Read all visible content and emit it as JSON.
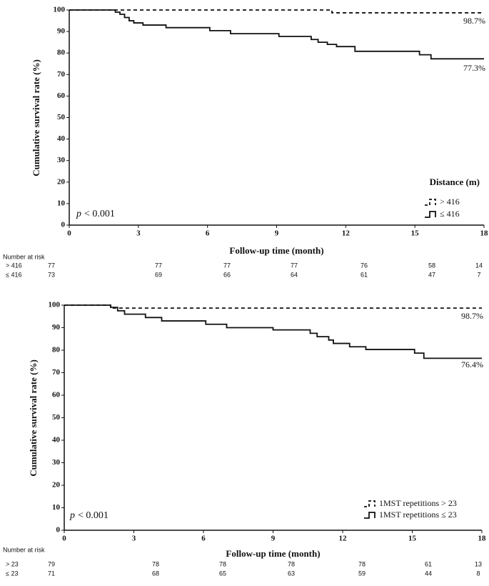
{
  "chart_data": [
    {
      "type": "line",
      "step": true,
      "y_label": "Cumulative survival rate (%)",
      "x_label": "Follow-up time (month)",
      "xlim": [
        0,
        18
      ],
      "ylim": [
        0,
        100
      ],
      "xticks": [
        0,
        3,
        6,
        9,
        12,
        15,
        18
      ],
      "yticks": [
        0,
        10,
        20,
        30,
        40,
        50,
        60,
        70,
        80,
        90,
        100
      ],
      "legend_title": "Distance (m)",
      "annotation": {
        "italic": "p",
        "text": "< 0.001"
      },
      "series": [
        {
          "name": "> 416",
          "color": "#111111",
          "dash": true,
          "end_label": "98.7%",
          "x": [
            0,
            11.4,
            18
          ],
          "values": [
            100,
            98.7,
            98.7
          ]
        },
        {
          "name": "≤ 416",
          "color": "#111111",
          "dash": false,
          "end_label": "77.3%",
          "x": [
            0,
            2.0,
            2.2,
            2.4,
            2.6,
            2.8,
            3.2,
            4.2,
            6.1,
            7.0,
            9.1,
            10.5,
            10.8,
            11.2,
            11.6,
            12.4,
            15.2,
            15.7,
            18
          ],
          "values": [
            100,
            99,
            98,
            96.5,
            95,
            94,
            93,
            91.8,
            90.4,
            89,
            87.7,
            86.3,
            85,
            84,
            83,
            80.8,
            79.2,
            77.3,
            77.3
          ]
        }
      ],
      "risk_table": {
        "title": "Number at risk",
        "rows": [
          {
            "label": "> 416",
            "values": [
              77,
              77,
              77,
              77,
              76,
              58,
              14
            ]
          },
          {
            "label": "≤ 416",
            "values": [
              73,
              69,
              66,
              64,
              61,
              47,
              7
            ]
          }
        ]
      }
    },
    {
      "type": "line",
      "step": true,
      "y_label": "Cumulative survival rate (%)",
      "x_label": "Follow-up time (month)",
      "xlim": [
        0,
        18
      ],
      "ylim": [
        0,
        100
      ],
      "xticks": [
        0,
        3,
        6,
        9,
        12,
        15,
        18
      ],
      "yticks": [
        0,
        10,
        20,
        30,
        40,
        50,
        60,
        70,
        80,
        90,
        100
      ],
      "annotation": {
        "italic": "p",
        "text": "< 0.001"
      },
      "series": [
        {
          "name": "1MST repetitions > 23",
          "color": "#111111",
          "dash": true,
          "end_label": "98.7%",
          "x": [
            0,
            2.0,
            18
          ],
          "values": [
            100,
            98.7,
            98.7
          ]
        },
        {
          "name": "1MST repetitions ≤ 23",
          "color": "#111111",
          "dash": false,
          "end_label": "76.4%",
          "x": [
            0,
            2.0,
            2.3,
            2.6,
            3.5,
            4.2,
            6.1,
            7.0,
            9.0,
            10.6,
            10.9,
            11.4,
            11.6,
            12.3,
            13.0,
            15.1,
            15.5,
            18
          ],
          "values": [
            100,
            99,
            97.5,
            96,
            94.5,
            93,
            91.5,
            90,
            89,
            87.5,
            86,
            84.5,
            83,
            81.5,
            80.3,
            78.7,
            76.4,
            76.4
          ]
        }
      ],
      "risk_table": {
        "title": "Number at risk",
        "rows": [
          {
            "label": "> 23",
            "values": [
              79,
              78,
              78,
              78,
              78,
              61,
              13
            ]
          },
          {
            "label": "≤ 23",
            "values": [
              71,
              68,
              65,
              63,
              59,
              44,
              8
            ]
          }
        ]
      }
    }
  ]
}
